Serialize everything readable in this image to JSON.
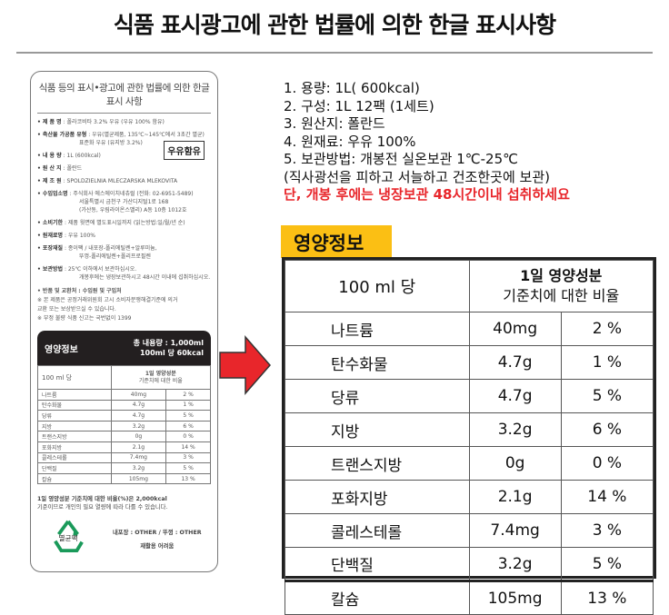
{
  "title": "식품 표시광고에 관한 법률에 의한 한글 표시사항",
  "label": {
    "heading": "식품 등의 표시•광고에 관한 법률에 의한 한글 표시 사항",
    "items": [
      {
        "k": "• 제 품 명",
        "v": ": 폴라코비타 3.2% 우유 (우유 100% 함유)"
      },
      {
        "k": "• 축산물 가공품 유형",
        "v": ": 우유(멸균제품, 135℃~145℃에서 3초간 멸균)",
        "extra": [
          "표준화 우유 (유지방 3.2%)"
        ]
      },
      {
        "k": "• 내 용 량",
        "v": ":  1L (600kcal)"
      },
      {
        "k": "• 원 산 지",
        "v": ":  폴란드"
      },
      {
        "k": "• 제 조 원",
        "v": ":  SPOLDZIELNIA MLECZARSKA MLEKOVITA"
      },
      {
        "k": "• 수입업소명",
        "v": ": 주식회사 에스에이치네츄럴 (전화: 02-6951-5489)",
        "extra": [
          "서울특별시 금천구 가산디지털1로 168",
          "(가산동, 우림라이온스밸리) A동 10층 1012호"
        ]
      },
      {
        "k": "• 소비기한",
        "v": ": 제품 윗면에 별도표시일까지 (읽는방법:일/월/년 순)"
      },
      {
        "k": "• 원재료명",
        "v": ": 우유 100%"
      },
      {
        "k": "• 포장재질",
        "v": ": 종이팩 / 내포장-폴리에틸렌+알루미늄,",
        "extra": [
          "뚜껑-폴리에틸렌+폴리프로필렌"
        ]
      },
      {
        "k": "• 보관방법",
        "v": ": 25℃ 이하에서 보관하십시오.",
        "extra": [
          "개봉후에는 냉장보관하시고 48시간 이내에 섭취하십시오."
        ]
      }
    ],
    "milk_badge": "우유함유",
    "notes": [
      "• 반품 및 교환처 : 수입원 및 구입처",
      "※ 본 제품은 공정거래위원회 고시 소비자분쟁해결기준에 의거",
      "   교환 또는 보상받으실 수 있습니다.",
      "※ 부정 불량 식품 신고는 국번없이 1399"
    ],
    "nut_title": "영양정보",
    "nut_total": "총 내용량 : 1,000ml",
    "nut_kcal": "100ml 당 60kcal",
    "per": "100 ml 당",
    "daily1": "1일 영양성분",
    "daily2": "기준치에 대한 비율",
    "foot1": "1일 영양성분 기준치에 대한 비율(%)은 2,000kcal",
    "foot2": "기준이므로 개인의 필요 열량에 따라 다를 수 있습니다.",
    "recycle_text": "멸균팩",
    "pack": "내포장 : OTHER / 뚜껑 : OTHER",
    "recycle_hard": "재활용 어려움"
  },
  "info": {
    "lines": [
      "1. 용량: 1L( 600kcal)",
      "2. 구성: 1L 12팩 (1세트)",
      "3. 원산지: 폴란드",
      "4. 원재료: 우유 100%",
      "5. 보관방법: 개봉전 실온보관 1℃-25℃",
      "(직사광선을 피하고 서늘하고 건조한곳에 보관)"
    ],
    "warning": "단, 개봉 후에는 냉장보관 48시간이내 섭취하세요",
    "warning_color": "#e8262b"
  },
  "nutrition": {
    "badge": "영양정보",
    "badge_color": "#fbbf14",
    "per": "100 ml 당",
    "daily1": "1일 영양성분",
    "daily2": "기준치에 대한 비율",
    "rows": [
      {
        "name": "나트륨",
        "amount": "40mg",
        "pct": "2 %"
      },
      {
        "name": "탄수화물",
        "amount": "4.7g",
        "pct": "1 %"
      },
      {
        "name": "당류",
        "amount": "4.7g",
        "pct": "5 %"
      },
      {
        "name": "지방",
        "amount": "3.2g",
        "pct": "6 %"
      },
      {
        "name": "트랜스지방",
        "amount": "0g",
        "pct": "0 %"
      },
      {
        "name": "포화지방",
        "amount": "2.1g",
        "pct": "14 %"
      },
      {
        "name": "콜레스테롤",
        "amount": "7.4mg",
        "pct": "3 %"
      },
      {
        "name": "단백질",
        "amount": "3.2g",
        "pct": "5 %"
      },
      {
        "name": "칼슘",
        "amount": "105mg",
        "pct": "13 %"
      }
    ]
  }
}
